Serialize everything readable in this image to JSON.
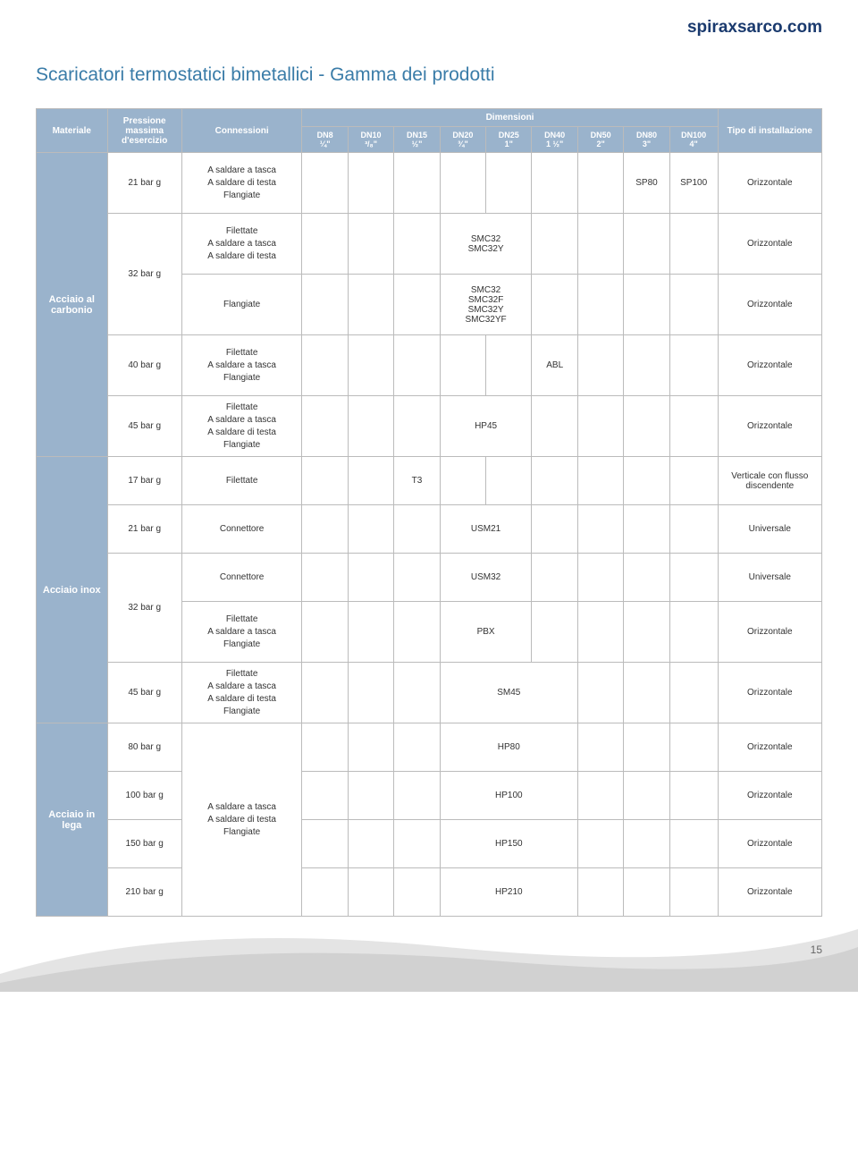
{
  "brand": "spiraxsarco.com",
  "title": "Scaricatori termostatici bimetallici - Gamma dei prodotti",
  "page_number": "15",
  "colors": {
    "header_bg": "#9ab3cc",
    "header_fg": "#ffffff",
    "title_color": "#3a7ca8",
    "brand_color": "#1a3a6e",
    "border": "#bbbbbb"
  },
  "headers": {
    "materiale": "Materiale",
    "pressione": "Pressione massima d'esercizio",
    "connessioni": "Connessioni",
    "dimensioni": "Dimensioni",
    "tipo": "Tipo di installazione",
    "cols": [
      {
        "top": "DN8",
        "bot": "¼\""
      },
      {
        "top": "DN10",
        "bot": "³/₈\""
      },
      {
        "top": "DN15",
        "bot": "½\""
      },
      {
        "top": "DN20",
        "bot": "¾\""
      },
      {
        "top": "DN25",
        "bot": "1\""
      },
      {
        "top": "DN40",
        "bot": "1 ½\""
      },
      {
        "top": "DN50",
        "bot": "2\""
      },
      {
        "top": "DN80",
        "bot": "3\""
      },
      {
        "top": "DN100",
        "bot": "4\""
      }
    ]
  },
  "materials": {
    "carbonio": "Acciaio al carbonio",
    "inox": "Acciaio inox",
    "lega": "Acciaio in lega"
  },
  "rows": {
    "r1": {
      "press": "21 bar g",
      "conn": "A saldare a tasca\nA saldare di testa\nFlangiate",
      "dn80": "SP80",
      "dn100": "SP100",
      "inst": "Orizzontale"
    },
    "r2a": {
      "press": "32 bar g",
      "conn": "Filettate\nA saldare a tasca\nA saldare di testa",
      "cell": "SMC32\nSMC32Y",
      "inst": "Orizzontale"
    },
    "r2b": {
      "conn": "Flangiate",
      "cell": "SMC32\nSMC32F\nSMC32Y\nSMC32YF",
      "inst": "Orizzontale"
    },
    "r3": {
      "press": "40 bar g",
      "conn": "Filettate\nA saldare a tasca\nFlangiate",
      "dn40": "ABL",
      "inst": "Orizzontale"
    },
    "r4": {
      "press": "45 bar g",
      "conn": "Filettate\nA saldare a tasca\nA saldare di testa\nFlangiate",
      "cell": "HP45",
      "inst": "Orizzontale"
    },
    "r5": {
      "press": "17 bar g",
      "conn": "Filettate",
      "dn15": "T3",
      "inst": "Verticale con flusso discendente"
    },
    "r6": {
      "press": "21 bar g",
      "conn": "Connettore",
      "cell": "USM21",
      "inst": "Universale"
    },
    "r7a": {
      "press": "32 bar g",
      "conn": "Connettore",
      "cell": "USM32",
      "inst": "Universale"
    },
    "r7b": {
      "conn": "Filettate\nA saldare a tasca\nFlangiate",
      "cell": "PBX",
      "inst": "Orizzontale"
    },
    "r8": {
      "press": "45 bar g",
      "conn": "Filettate\nA saldare a tasca\nA saldare di testa\nFlangiate",
      "cell": "SM45",
      "inst": "Orizzontale"
    },
    "r9": {
      "press": "80 bar g",
      "cell": "HP80",
      "inst": "Orizzontale"
    },
    "r10": {
      "press": "100 bar g",
      "conn": "A saldare a tasca\nA saldare di testa\nFlangiate",
      "cell": "HP100",
      "inst": "Orizzontale"
    },
    "r11": {
      "press": "150 bar g",
      "cell": "HP150",
      "inst": "Orizzontale"
    },
    "r12": {
      "press": "210 bar g",
      "cell": "HP210",
      "inst": "Orizzontale"
    }
  }
}
